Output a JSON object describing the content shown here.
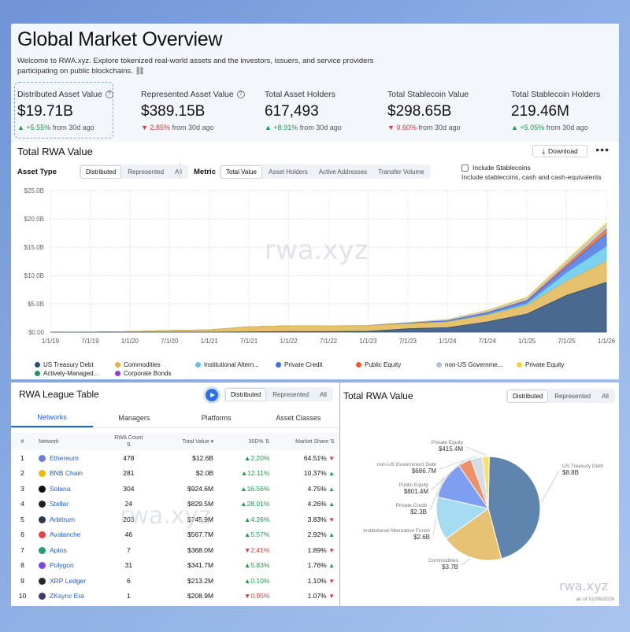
{
  "overview": {
    "title": "Global Market Overview",
    "subtitle": "Welcome to RWA.xyz. Explore tokenized real-world assets and the investors, issuers, and service providers participating on public blockchains.",
    "stats": [
      {
        "label": "Distributed Asset Value",
        "value": "$19.71B",
        "change": "+5.55%",
        "direction": "up",
        "suffix": "from 30d ago",
        "info": true
      },
      {
        "label": "Represented Asset Value",
        "value": "$389.15B",
        "change": "2.85%",
        "direction": "down",
        "suffix": "from 30d ago",
        "info": true
      },
      {
        "label": "Total Asset Holders",
        "value": "617,493",
        "change": "+8.91%",
        "direction": "up",
        "suffix": "from 30d ago",
        "info": false
      },
      {
        "label": "Total Stablecoin Value",
        "value": "$298.65B",
        "change": "0.60%",
        "direction": "down",
        "suffix": "from 30d ago",
        "info": false
      },
      {
        "label": "Total Stablecoin Holders",
        "value": "219.46M",
        "change": "+5.05%",
        "direction": "up",
        "suffix": "from 30d ago",
        "info": false
      }
    ]
  },
  "trend": {
    "title": "Total RWA Value",
    "download_label": "Download",
    "more_label": "•••",
    "asset_type_label": "Asset Type",
    "asset_type_options": [
      "Distributed",
      "Represented",
      "All"
    ],
    "metric_label": "Metric",
    "metric_options": [
      "Total Value",
      "Asset Holders",
      "Active Addresses",
      "Transfer Volume"
    ],
    "include_stablecoins": "Include Stablecoins",
    "include_stablecoins_sub": "Include stablecoins, cash and cash-equivalents",
    "watermark": "rwa.xyz",
    "legend": [
      {
        "name": "US Treasury Debt",
        "color": "#2c4f7c"
      },
      {
        "name": "Commodities",
        "color": "#e0b34a"
      },
      {
        "name": "Institutional Altern...",
        "color": "#5bc6e8"
      },
      {
        "name": "Private Credit",
        "color": "#3f6fe0"
      },
      {
        "name": "Public Equity",
        "color": "#e8612c"
      },
      {
        "name": "non-US Governme...",
        "color": "#b8c2d0"
      },
      {
        "name": "Private Equity",
        "color": "#f2d53c"
      },
      {
        "name": "Actively-Managed...",
        "color": "#2a8c6c"
      },
      {
        "name": "Corporate Bonds",
        "color": "#8a3fd1"
      }
    ]
  },
  "chart_data": [
    {
      "type": "area",
      "title": "Total RWA Value",
      "x": [
        "1/1/19",
        "7/1/19",
        "1/1/20",
        "7/1/20",
        "1/1/21",
        "7/1/21",
        "1/1/22",
        "7/1/22",
        "1/1/23",
        "7/1/23",
        "1/1/24",
        "7/1/24",
        "1/1/25",
        "7/1/25",
        "1/1/26"
      ],
      "y_ticks": [
        "$0.00",
        "$5.0B",
        "$10.0B",
        "$15.0B",
        "$20.0B",
        "$25.0B"
      ],
      "ylim": [
        0,
        25
      ],
      "stacked": true,
      "series": [
        {
          "name": "US Treasury Debt",
          "values": [
            0,
            0,
            0,
            0,
            0,
            0.05,
            0.1,
            0.1,
            0.15,
            0.6,
            0.8,
            1.8,
            3.2,
            6.5,
            8.8
          ]
        },
        {
          "name": "Commodities",
          "values": [
            0,
            0,
            0.1,
            0.3,
            0.4,
            0.9,
            1.0,
            1.0,
            1.0,
            0.9,
            1.0,
            1.2,
            1.5,
            2.5,
            3.7
          ]
        },
        {
          "name": "Institutional Altern...",
          "values": [
            0,
            0,
            0,
            0,
            0,
            0,
            0,
            0,
            0,
            0,
            0,
            0.1,
            0.3,
            1.5,
            2.6
          ]
        },
        {
          "name": "Private Credit",
          "values": [
            0,
            0,
            0,
            0,
            0,
            0,
            0,
            0,
            0,
            0.1,
            0.2,
            0.3,
            0.5,
            1.0,
            2.3
          ]
        },
        {
          "name": "Public Equity",
          "values": [
            0,
            0,
            0,
            0,
            0,
            0,
            0,
            0,
            0,
            0,
            0,
            0.05,
            0.1,
            0.4,
            0.8
          ]
        },
        {
          "name": "non-US Governme...",
          "values": [
            0,
            0,
            0,
            0,
            0,
            0,
            0,
            0,
            0.05,
            0.1,
            0.2,
            0.3,
            0.4,
            0.5,
            0.7
          ]
        },
        {
          "name": "Private Equity",
          "values": [
            0,
            0,
            0,
            0,
            0,
            0,
            0,
            0,
            0,
            0,
            0.05,
            0.1,
            0.2,
            0.3,
            0.4
          ]
        }
      ]
    },
    {
      "type": "pie",
      "title": "Total RWA Value",
      "series": [
        {
          "name": "US Treasury Debt",
          "label": "$8.8B",
          "value": 8.8,
          "color": "#5f84ad"
        },
        {
          "name": "Commodities",
          "label": "$3.7B",
          "value": 3.7,
          "color": "#e7c275"
        },
        {
          "name": "Institutional Alternative Funds",
          "label": "$2.6B",
          "value": 2.6,
          "color": "#a6dcf2"
        },
        {
          "name": "Private Credit",
          "label": "$2.3B",
          "value": 2.3,
          "color": "#7e9ef2"
        },
        {
          "name": "Public Equity",
          "label": "$801.4M",
          "value": 0.8014,
          "color": "#f0906a"
        },
        {
          "name": "non-US Government Debt",
          "label": "$686.7M",
          "value": 0.6867,
          "color": "#d7dde7"
        },
        {
          "name": "Private Equity",
          "label": "$415.4M",
          "value": 0.4154,
          "color": "#f6e26b"
        }
      ]
    }
  ],
  "league": {
    "title": "RWA League Table",
    "segment_options": [
      "Distributed",
      "Represented",
      "All"
    ],
    "tabs": [
      "Networks",
      "Managers",
      "Platforms",
      "Asset Classes"
    ],
    "columns": [
      "#",
      "Network",
      "RWA Count",
      "Total Value",
      "30D%",
      "Market Share"
    ],
    "rows": [
      {
        "rank": "1",
        "network": "Ethereum",
        "color": "#6b7fd8",
        "count": "478",
        "value": "$12.6B",
        "change": "2.20%",
        "dir": "up",
        "share": "64.51%",
        "sdir": "down"
      },
      {
        "rank": "2",
        "network": "BNB Chain",
        "color": "#f0b90b",
        "count": "281",
        "value": "$2.0B",
        "change": "12.11%",
        "dir": "up",
        "share": "10.37%",
        "sdir": "up"
      },
      {
        "rank": "3",
        "network": "Solana",
        "color": "#111111",
        "count": "304",
        "value": "$924.6M",
        "change": "16.56%",
        "dir": "up",
        "share": "4.75%",
        "sdir": "up"
      },
      {
        "rank": "4",
        "network": "Stellar",
        "color": "#222222",
        "count": "24",
        "value": "$829.5M",
        "change": "28.01%",
        "dir": "up",
        "share": "4.26%",
        "sdir": "up"
      },
      {
        "rank": "5",
        "network": "Arbitrum",
        "color": "#2d374b",
        "count": "203",
        "value": "$745.9M",
        "change": "4.26%",
        "dir": "up",
        "share": "3.83%",
        "sdir": "down"
      },
      {
        "rank": "6",
        "network": "Avalanche",
        "color": "#e84142",
        "count": "46",
        "value": "$567.7M",
        "change": "5.57%",
        "dir": "up",
        "share": "2.92%",
        "sdir": "up"
      },
      {
        "rank": "7",
        "network": "Aptos",
        "color": "#1ea06a",
        "count": "7",
        "value": "$368.0M",
        "change": "2.41%",
        "dir": "down",
        "share": "1.89%",
        "sdir": "down"
      },
      {
        "rank": "8",
        "network": "Polygon",
        "color": "#8247e5",
        "count": "31",
        "value": "$341.7M",
        "change": "5.83%",
        "dir": "up",
        "share": "1.76%",
        "sdir": "up"
      },
      {
        "rank": "9",
        "network": "XRP Ledger",
        "color": "#23292f",
        "count": "6",
        "value": "$213.2M",
        "change": "0.10%",
        "dir": "up",
        "share": "1.10%",
        "sdir": "down"
      },
      {
        "rank": "10",
        "network": "ZKsync Era",
        "color": "#3b3b6d",
        "count": "1",
        "value": "$208.9M",
        "change": "0.95%",
        "dir": "down",
        "share": "1.07%",
        "sdir": "down"
      }
    ],
    "watermark": "rwa.xyz"
  },
  "pie": {
    "title": "Total RWA Value",
    "segment_options": [
      "Distributed",
      "Represented",
      "All"
    ],
    "watermark": "rwa.xyz",
    "asof": "as of 01/09/2026"
  }
}
